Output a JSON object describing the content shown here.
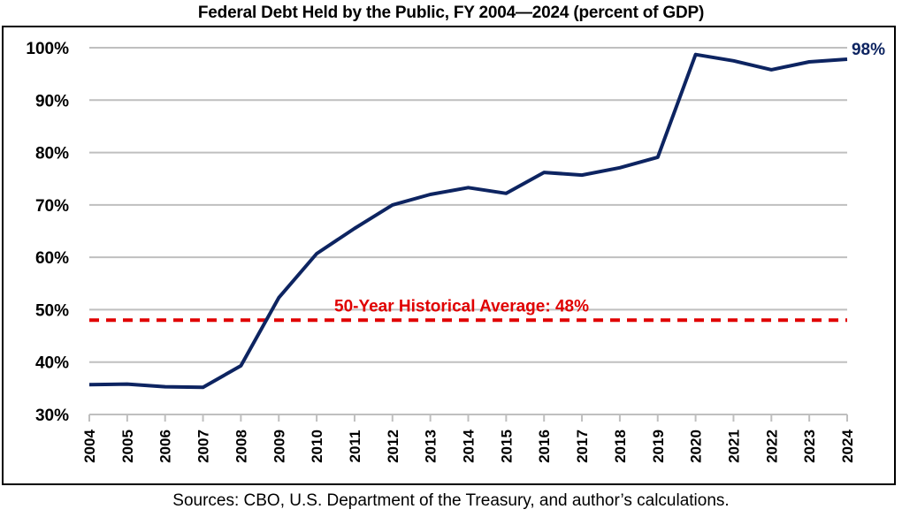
{
  "chart_data": {
    "type": "line",
    "title": "Federal Debt Held by the Public, FY 2004—2024 (percent of GDP)",
    "xlabel": "",
    "ylabel": "",
    "x": [
      "2004",
      "2005",
      "2006",
      "2007",
      "2008",
      "2009",
      "2010",
      "2011",
      "2012",
      "2013",
      "2014",
      "2015",
      "2016",
      "2017",
      "2018",
      "2019",
      "2020",
      "2021",
      "2022",
      "2023",
      "2024"
    ],
    "series": [
      {
        "name": "Federal Debt Held by the Public (% of GDP)",
        "color": "#0d2461",
        "values": [
          35.7,
          35.8,
          35.3,
          35.2,
          39.3,
          52.3,
          60.7,
          65.5,
          70.0,
          72.0,
          73.3,
          72.2,
          76.2,
          75.7,
          77.1,
          79.1,
          98.7,
          97.5,
          95.8,
          97.3,
          97.8
        ]
      }
    ],
    "reference_line": {
      "name": "50-Year Historical Average",
      "value": 48,
      "label": "50-Year Historical Average: 48%",
      "color": "#e00000",
      "style": "dashed"
    },
    "end_label": "98%",
    "ylim": [
      30,
      100
    ],
    "yticks": [
      30,
      40,
      50,
      60,
      70,
      80,
      90,
      100
    ],
    "ytick_labels": [
      "30%",
      "40%",
      "50%",
      "60%",
      "70%",
      "80%",
      "90%",
      "100%"
    ],
    "grid": "horizontal",
    "legend": "none",
    "source": "Sources: CBO, U.S. Department of the Treasury, and author’s calculations."
  }
}
